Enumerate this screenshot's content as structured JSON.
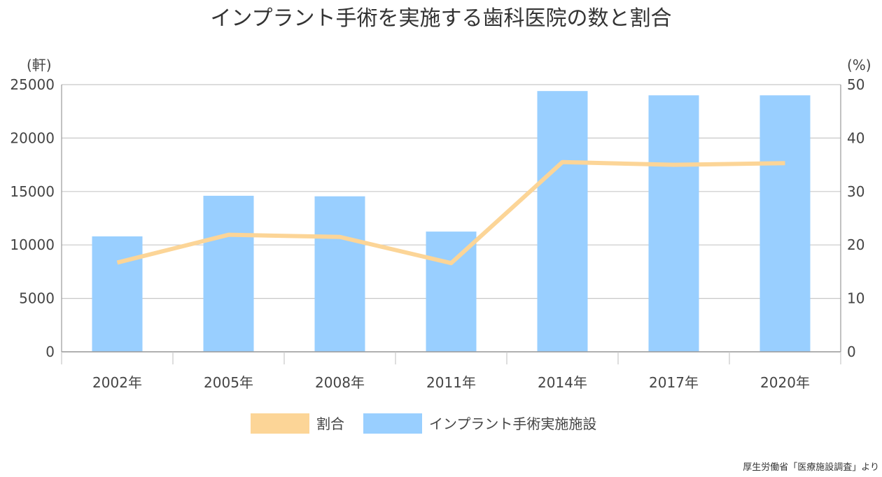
{
  "chart_data": {
    "type": "bar",
    "title": "インプラント手術を実施する歯科医院の数と割合",
    "categories": [
      "2002年",
      "2005年",
      "2008年",
      "2011年",
      "2014年",
      "2017年",
      "2020年"
    ],
    "series": [
      {
        "name": "インプラント手術実施施設",
        "type": "bar",
        "axis": "left",
        "color": "#99cfff",
        "values": [
          10800,
          14600,
          14550,
          11250,
          24400,
          24000,
          24000
        ]
      },
      {
        "name": "割合",
        "type": "line",
        "axis": "right",
        "color": "#fcd597",
        "values": [
          16.7,
          21.9,
          21.5,
          16.6,
          35.5,
          35.0,
          35.3
        ]
      }
    ],
    "y_left": {
      "unit": "(軒)",
      "min": 0,
      "max": 25000,
      "ticks": [
        "0",
        "5000",
        "10000",
        "15000",
        "20000",
        "25000"
      ]
    },
    "y_right": {
      "unit": "(%)",
      "min": 0,
      "max": 50,
      "ticks": [
        "0",
        "10",
        "20",
        "30",
        "40",
        "50"
      ]
    },
    "grid": true,
    "legend_position": "bottom",
    "legend": [
      {
        "label": "割合",
        "color": "#fcd597"
      },
      {
        "label": "インプラント手術実施施設",
        "color": "#99cfff"
      }
    ],
    "source": "厚生労働省「医療施設調査」より"
  }
}
